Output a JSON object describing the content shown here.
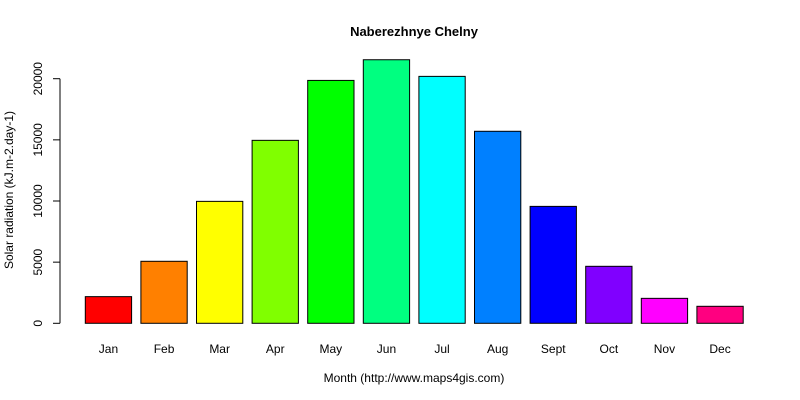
{
  "chart_data": {
    "type": "bar",
    "title": "Naberezhnye Chelny",
    "xlabel": "Month (http://www.maps4gis.com)",
    "ylabel": "Solar radiation (kJ.m-2.day-1)",
    "categories": [
      "Jan",
      "Feb",
      "Mar",
      "Apr",
      "May",
      "Jun",
      "Jul",
      "Aug",
      "Sept",
      "Oct",
      "Nov",
      "Dec"
    ],
    "values": [
      2180,
      5070,
      9970,
      14960,
      19860,
      21550,
      20190,
      15700,
      9560,
      4660,
      2040,
      1390
    ],
    "colors": [
      "#FF0000",
      "#FF8000",
      "#FFFF00",
      "#80FF00",
      "#00FF00",
      "#00FF80",
      "#00FFFF",
      "#0080FF",
      "#0000FF",
      "#8000FF",
      "#FF00FF",
      "#FF0080"
    ],
    "ylim": [
      0,
      20000
    ],
    "yticks": [
      "0",
      "5000",
      "10000",
      "15000",
      "20000"
    ],
    "grid": false,
    "legend": "none"
  }
}
